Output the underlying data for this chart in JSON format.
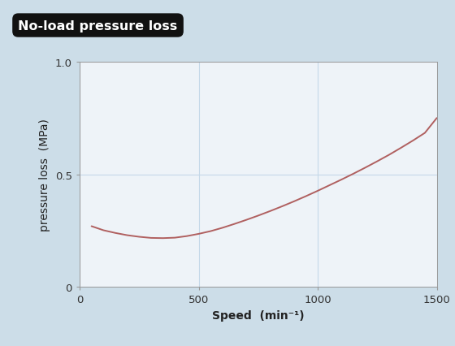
{
  "title": "No-load pressure loss",
  "xlabel": "Speed  (min⁻¹)",
  "ylabel": "pressure loss  (MPa)",
  "xlim": [
    0,
    1500
  ],
  "ylim": [
    0,
    1.0
  ],
  "xticks": [
    0,
    500,
    1000,
    1500
  ],
  "yticks": [
    0,
    0.5,
    1.0
  ],
  "ytick_labels": [
    "0",
    "0.5",
    "1.0"
  ],
  "xtick_labels": [
    "0",
    "500",
    "1000",
    "1500"
  ],
  "curve_x": [
    50,
    100,
    150,
    200,
    250,
    300,
    350,
    400,
    450,
    500,
    550,
    600,
    650,
    700,
    750,
    800,
    850,
    900,
    950,
    1000,
    1050,
    1100,
    1150,
    1200,
    1250,
    1300,
    1350,
    1400,
    1450,
    1500
  ],
  "curve_y": [
    0.27,
    0.252,
    0.24,
    0.23,
    0.223,
    0.218,
    0.217,
    0.219,
    0.226,
    0.236,
    0.248,
    0.263,
    0.28,
    0.298,
    0.317,
    0.337,
    0.358,
    0.38,
    0.403,
    0.427,
    0.452,
    0.477,
    0.503,
    0.53,
    0.558,
    0.587,
    0.618,
    0.65,
    0.684,
    0.75
  ],
  "curve_color": "#b06060",
  "curve_linewidth": 1.4,
  "grid_color": "#c5d8e8",
  "bg_color": "#ccdde8",
  "plot_bg_color": "#eef3f8",
  "title_bg_color": "#111111",
  "title_text_color": "#ffffff",
  "title_fontsize": 11.5,
  "axis_label_fontsize": 10,
  "tick_fontsize": 9.5,
  "spine_color": "#999999"
}
